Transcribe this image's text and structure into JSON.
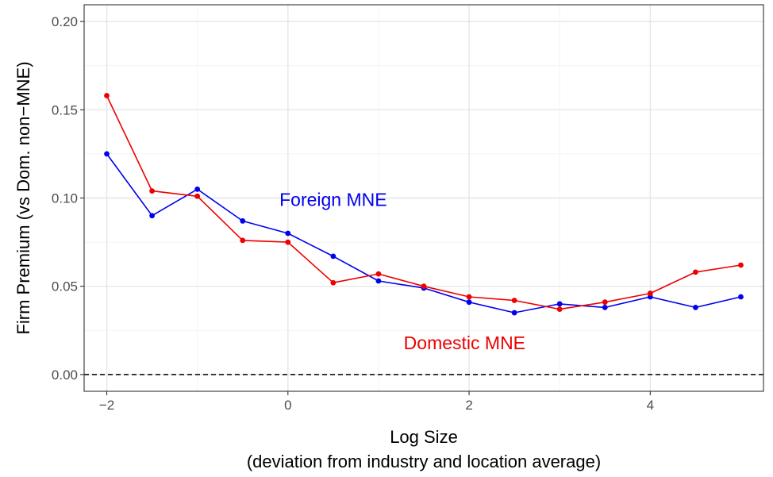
{
  "chart_data": {
    "type": "line",
    "title": "",
    "xlabel": "Log Size",
    "xlabel_sub": "(deviation from industry and location average)",
    "ylabel": "Firm Premium (vs Dom. non−MNE)",
    "xlim": [
      -2.25,
      5.25
    ],
    "ylim": [
      -0.0095,
      0.2095
    ],
    "x_ticks": [
      -2,
      0,
      2,
      4
    ],
    "x_tick_labels": [
      "−2",
      "0",
      "2",
      "4"
    ],
    "y_ticks": [
      0.0,
      0.05,
      0.1,
      0.15,
      0.2
    ],
    "y_tick_labels": [
      "0.00",
      "0.05",
      "0.10",
      "0.15",
      "0.20"
    ],
    "grid": true,
    "reference_line": {
      "y": 0,
      "style": "dashed",
      "color": "#000000"
    },
    "x": [
      -2,
      -1.5,
      -1,
      -0.5,
      0,
      0.5,
      1,
      1.5,
      2,
      2.5,
      3,
      3.5,
      4,
      4.5,
      5
    ],
    "series": [
      {
        "name": "Foreign MNE",
        "color": "#0000EE",
        "values": [
          0.125,
          0.09,
          0.105,
          0.087,
          0.08,
          0.067,
          0.053,
          0.049,
          0.041,
          0.035,
          0.04,
          0.038,
          0.044,
          0.038,
          0.044
        ]
      },
      {
        "name": "Domestic MNE",
        "color": "#EE0000",
        "values": [
          0.158,
          0.104,
          0.101,
          0.076,
          0.075,
          0.052,
          0.057,
          0.05,
          0.044,
          0.042,
          0.037,
          0.041,
          0.046,
          0.058,
          0.062
        ]
      }
    ],
    "annotations": [
      {
        "text": "Foreign MNE",
        "x": 0.5,
        "y": 0.099,
        "color": "#0000EE"
      },
      {
        "text": "Domestic MNE",
        "x": 1.95,
        "y": 0.018,
        "color": "#EE0000"
      }
    ]
  }
}
